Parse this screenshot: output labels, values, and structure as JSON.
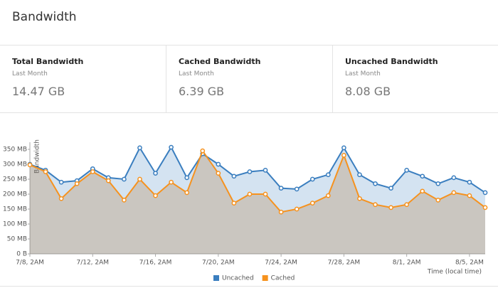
{
  "header": {
    "title": "Bandwidth"
  },
  "stats": [
    {
      "label": "Total Bandwidth",
      "period": "Last Month",
      "value": "14.47 GB"
    },
    {
      "label": "Cached Bandwidth",
      "period": "Last Month",
      "value": "6.39 GB"
    },
    {
      "label": "Uncached Bandwidth",
      "period": "Last Month",
      "value": "8.08 GB"
    }
  ],
  "chart_data": {
    "type": "area",
    "y_label": "Bandwidth",
    "x_label": "Time (local time)",
    "categories": [
      "7/8, 2AM",
      null,
      null,
      null,
      "7/12, 2AM",
      null,
      null,
      null,
      "7/16, 2AM",
      null,
      null,
      null,
      "7/20, 2AM",
      null,
      null,
      null,
      "7/24, 2AM",
      null,
      null,
      null,
      "7/28, 2AM",
      null,
      null,
      null,
      "8/1, 2AM",
      null,
      null,
      null,
      "8/5, 2AM",
      null
    ],
    "series": [
      {
        "name": "Uncached",
        "color": "#3a7ebf",
        "values": [
          300,
          280,
          240,
          245,
          285,
          255,
          250,
          355,
          270,
          357,
          255,
          335,
          300,
          260,
          275,
          280,
          220,
          217,
          250,
          265,
          355,
          265,
          235,
          220,
          280,
          260,
          235,
          255,
          240,
          205
        ]
      },
      {
        "name": "Cached",
        "color": "#f6921e",
        "values": [
          298,
          275,
          185,
          235,
          275,
          245,
          180,
          250,
          195,
          240,
          205,
          345,
          270,
          170,
          200,
          200,
          140,
          150,
          170,
          195,
          330,
          185,
          165,
          155,
          165,
          210,
          180,
          205,
          195,
          155
        ]
      }
    ],
    "ylim": [
      0,
      350
    ],
    "yticks": [
      {
        "value": 0,
        "label": "0 B"
      },
      {
        "value": 50,
        "label": "50 MB"
      },
      {
        "value": 100,
        "label": "100 MB"
      },
      {
        "value": 150,
        "label": "150 MB"
      },
      {
        "value": 200,
        "label": "200 MB"
      },
      {
        "value": 250,
        "label": "250 MB"
      },
      {
        "value": 300,
        "label": "300 MB"
      },
      {
        "value": 350,
        "label": "350 MB"
      }
    ],
    "grid": false
  }
}
